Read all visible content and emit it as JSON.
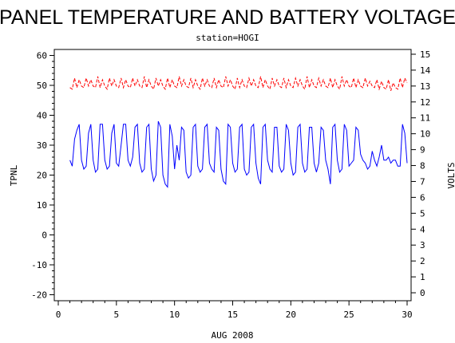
{
  "chart_data": {
    "type": "line",
    "title": "PANEL TEMPERATURE AND BATTERY VOLTAGE",
    "subtitle": "station=HOGI",
    "xlabel": "AUG 2008",
    "ylabel_left": "TPNL",
    "ylabel_right": "VOLTS",
    "xlim": [
      0,
      30
    ],
    "ylim_left": [
      -22,
      62
    ],
    "ylim_right": [
      -0.5,
      15.3
    ],
    "x_ticks": [
      0,
      5,
      10,
      15,
      20,
      25,
      30
    ],
    "x_minor_step": 1,
    "y_left_ticks": [
      -20,
      -10,
      0,
      10,
      20,
      30,
      40,
      50,
      60
    ],
    "y_left_minor_step": 2,
    "y_right_ticks": [
      0,
      1,
      2,
      3,
      4,
      5,
      6,
      7,
      8,
      9,
      10,
      11,
      12,
      13,
      14,
      15
    ],
    "grid": false,
    "legend": "none",
    "series": [
      {
        "axis": "left",
        "color": "#0000ff",
        "style": "solid",
        "points": [
          [
            1.0,
            25
          ],
          [
            1.2,
            23
          ],
          [
            1.4,
            32
          ],
          [
            1.6,
            35
          ],
          [
            1.8,
            37
          ],
          [
            2.0,
            25
          ],
          [
            2.2,
            22
          ],
          [
            2.4,
            23
          ],
          [
            2.6,
            34
          ],
          [
            2.8,
            37
          ],
          [
            3.0,
            25
          ],
          [
            3.2,
            21
          ],
          [
            3.4,
            22
          ],
          [
            3.6,
            37
          ],
          [
            3.8,
            37
          ],
          [
            4.0,
            25
          ],
          [
            4.2,
            22
          ],
          [
            4.4,
            23
          ],
          [
            4.6,
            34
          ],
          [
            4.8,
            37
          ],
          [
            5.0,
            24
          ],
          [
            5.2,
            23
          ],
          [
            5.4,
            30
          ],
          [
            5.6,
            37
          ],
          [
            5.8,
            37
          ],
          [
            6.0,
            25
          ],
          [
            6.2,
            23
          ],
          [
            6.4,
            26
          ],
          [
            6.6,
            36
          ],
          [
            6.8,
            37
          ],
          [
            7.0,
            24
          ],
          [
            7.2,
            21
          ],
          [
            7.4,
            22
          ],
          [
            7.6,
            36
          ],
          [
            7.8,
            37
          ],
          [
            8.0,
            22
          ],
          [
            8.2,
            18
          ],
          [
            8.4,
            20
          ],
          [
            8.6,
            38
          ],
          [
            8.8,
            36
          ],
          [
            9.0,
            20
          ],
          [
            9.2,
            17
          ],
          [
            9.4,
            16
          ],
          [
            9.6,
            37
          ],
          [
            9.8,
            33
          ],
          [
            10.0,
            22
          ],
          [
            10.2,
            30
          ],
          [
            10.4,
            25
          ],
          [
            10.6,
            36
          ],
          [
            10.8,
            35
          ],
          [
            11.0,
            21
          ],
          [
            11.2,
            19
          ],
          [
            11.4,
            20
          ],
          [
            11.6,
            36
          ],
          [
            11.8,
            37
          ],
          [
            12.0,
            23
          ],
          [
            12.2,
            21
          ],
          [
            12.4,
            22
          ],
          [
            12.6,
            36
          ],
          [
            12.8,
            37
          ],
          [
            13.0,
            24
          ],
          [
            13.2,
            22
          ],
          [
            13.4,
            21
          ],
          [
            13.6,
            36
          ],
          [
            13.8,
            35
          ],
          [
            14.0,
            22
          ],
          [
            14.2,
            18
          ],
          [
            14.4,
            17
          ],
          [
            14.6,
            37
          ],
          [
            14.8,
            36
          ],
          [
            15.0,
            24
          ],
          [
            15.2,
            21
          ],
          [
            15.4,
            22
          ],
          [
            15.6,
            36
          ],
          [
            15.8,
            37
          ],
          [
            16.0,
            22
          ],
          [
            16.2,
            20
          ],
          [
            16.4,
            21
          ],
          [
            16.6,
            36
          ],
          [
            16.8,
            37
          ],
          [
            17.0,
            24
          ],
          [
            17.2,
            19
          ],
          [
            17.4,
            17
          ],
          [
            17.6,
            36
          ],
          [
            17.8,
            37
          ],
          [
            18.0,
            25
          ],
          [
            18.2,
            22
          ],
          [
            18.4,
            21
          ],
          [
            18.6,
            36
          ],
          [
            18.8,
            36
          ],
          [
            19.0,
            23
          ],
          [
            19.2,
            21
          ],
          [
            19.4,
            22
          ],
          [
            19.6,
            37
          ],
          [
            19.8,
            35
          ],
          [
            20.0,
            24
          ],
          [
            20.2,
            20
          ],
          [
            20.4,
            21
          ],
          [
            20.6,
            36
          ],
          [
            20.8,
            37
          ],
          [
            21.0,
            24
          ],
          [
            21.2,
            21
          ],
          [
            21.4,
            22
          ],
          [
            21.6,
            36
          ],
          [
            21.8,
            36
          ],
          [
            22.0,
            24
          ],
          [
            22.2,
            21
          ],
          [
            22.4,
            24
          ],
          [
            22.6,
            36
          ],
          [
            22.8,
            35
          ],
          [
            23.0,
            25
          ],
          [
            23.2,
            22
          ],
          [
            23.4,
            17
          ],
          [
            23.6,
            36
          ],
          [
            23.8,
            37
          ],
          [
            24.0,
            25
          ],
          [
            24.2,
            21
          ],
          [
            24.4,
            22
          ],
          [
            24.6,
            37
          ],
          [
            24.8,
            35
          ],
          [
            25.0,
            23
          ],
          [
            25.2,
            24
          ],
          [
            25.4,
            25
          ],
          [
            25.6,
            36
          ],
          [
            25.8,
            35
          ],
          [
            26.0,
            27
          ],
          [
            26.2,
            25
          ],
          [
            26.4,
            24
          ],
          [
            26.6,
            22
          ],
          [
            26.8,
            23
          ],
          [
            27.0,
            28
          ],
          [
            27.2,
            25
          ],
          [
            27.4,
            23
          ],
          [
            27.6,
            26
          ],
          [
            27.8,
            30
          ],
          [
            28.0,
            25
          ],
          [
            28.2,
            25
          ],
          [
            28.4,
            26
          ],
          [
            28.6,
            24
          ],
          [
            28.8,
            25
          ],
          [
            29.0,
            25
          ],
          [
            29.2,
            23
          ],
          [
            29.4,
            23
          ],
          [
            29.6,
            37
          ],
          [
            29.8,
            34
          ],
          [
            30.0,
            24
          ]
        ]
      },
      {
        "axis": "right",
        "color": "#ff0000",
        "style": "dashed",
        "points": [
          [
            1.0,
            12.9
          ],
          [
            1.2,
            12.8
          ],
          [
            1.4,
            13.5
          ],
          [
            1.6,
            12.9
          ],
          [
            1.8,
            13.4
          ],
          [
            2.0,
            13.0
          ],
          [
            2.2,
            12.9
          ],
          [
            2.4,
            13.5
          ],
          [
            2.6,
            13.0
          ],
          [
            2.8,
            13.4
          ],
          [
            3.0,
            13.0
          ],
          [
            3.2,
            12.9
          ],
          [
            3.4,
            13.6
          ],
          [
            3.6,
            12.9
          ],
          [
            3.8,
            13.4
          ],
          [
            4.0,
            13.0
          ],
          [
            4.2,
            12.8
          ],
          [
            4.4,
            13.5
          ],
          [
            4.6,
            13.0
          ],
          [
            4.8,
            13.4
          ],
          [
            5.0,
            13.0
          ],
          [
            5.2,
            12.9
          ],
          [
            5.4,
            13.5
          ],
          [
            5.6,
            12.9
          ],
          [
            5.8,
            13.4
          ],
          [
            6.0,
            13.0
          ],
          [
            6.2,
            12.9
          ],
          [
            6.4,
            13.5
          ],
          [
            6.6,
            13.0
          ],
          [
            6.8,
            13.4
          ],
          [
            7.0,
            13.0
          ],
          [
            7.2,
            12.9
          ],
          [
            7.4,
            13.6
          ],
          [
            7.6,
            12.9
          ],
          [
            7.8,
            13.4
          ],
          [
            8.0,
            13.0
          ],
          [
            8.2,
            12.8
          ],
          [
            8.4,
            13.5
          ],
          [
            8.6,
            13.0
          ],
          [
            8.8,
            13.4
          ],
          [
            9.0,
            13.0
          ],
          [
            9.2,
            12.8
          ],
          [
            9.4,
            13.5
          ],
          [
            9.6,
            12.9
          ],
          [
            9.8,
            13.4
          ],
          [
            10.0,
            13.0
          ],
          [
            10.2,
            12.9
          ],
          [
            10.4,
            13.6
          ],
          [
            10.6,
            13.0
          ],
          [
            10.8,
            13.4
          ],
          [
            11.0,
            13.0
          ],
          [
            11.2,
            12.9
          ],
          [
            11.4,
            13.5
          ],
          [
            11.6,
            12.9
          ],
          [
            11.8,
            13.4
          ],
          [
            12.0,
            13.0
          ],
          [
            12.2,
            12.8
          ],
          [
            12.4,
            13.5
          ],
          [
            12.6,
            13.0
          ],
          [
            12.8,
            13.4
          ],
          [
            13.0,
            13.0
          ],
          [
            13.2,
            12.9
          ],
          [
            13.4,
            13.5
          ],
          [
            13.6,
            12.9
          ],
          [
            13.8,
            13.4
          ],
          [
            14.0,
            13.0
          ],
          [
            14.2,
            12.9
          ],
          [
            14.4,
            13.6
          ],
          [
            14.6,
            13.0
          ],
          [
            14.8,
            13.4
          ],
          [
            15.0,
            13.0
          ],
          [
            15.2,
            12.8
          ],
          [
            15.4,
            13.5
          ],
          [
            15.6,
            12.9
          ],
          [
            15.8,
            13.4
          ],
          [
            16.0,
            13.0
          ],
          [
            16.2,
            12.9
          ],
          [
            16.4,
            13.5
          ],
          [
            16.6,
            13.0
          ],
          [
            16.8,
            13.4
          ],
          [
            17.0,
            13.0
          ],
          [
            17.2,
            12.9
          ],
          [
            17.4,
            13.6
          ],
          [
            17.6,
            12.9
          ],
          [
            17.8,
            13.4
          ],
          [
            18.0,
            13.0
          ],
          [
            18.2,
            12.8
          ],
          [
            18.4,
            13.5
          ],
          [
            18.6,
            13.0
          ],
          [
            18.8,
            13.4
          ],
          [
            19.0,
            13.0
          ],
          [
            19.2,
            12.9
          ],
          [
            19.4,
            13.5
          ],
          [
            19.6,
            12.9
          ],
          [
            19.8,
            13.4
          ],
          [
            20.0,
            13.0
          ],
          [
            20.2,
            12.9
          ],
          [
            20.4,
            13.5
          ],
          [
            20.6,
            13.0
          ],
          [
            20.8,
            13.4
          ],
          [
            21.0,
            13.0
          ],
          [
            21.2,
            12.8
          ],
          [
            21.4,
            13.6
          ],
          [
            21.6,
            12.9
          ],
          [
            21.8,
            13.4
          ],
          [
            22.0,
            13.0
          ],
          [
            22.2,
            12.9
          ],
          [
            22.4,
            13.5
          ],
          [
            22.6,
            13.0
          ],
          [
            22.8,
            13.4
          ],
          [
            23.0,
            13.0
          ],
          [
            23.2,
            12.9
          ],
          [
            23.4,
            13.5
          ],
          [
            23.6,
            12.9
          ],
          [
            23.8,
            13.4
          ],
          [
            24.0,
            13.0
          ],
          [
            24.2,
            12.8
          ],
          [
            24.4,
            13.6
          ],
          [
            24.6,
            13.0
          ],
          [
            24.8,
            13.4
          ],
          [
            25.0,
            13.0
          ],
          [
            25.2,
            12.9
          ],
          [
            25.4,
            13.5
          ],
          [
            25.6,
            12.9
          ],
          [
            25.8,
            13.4
          ],
          [
            26.0,
            13.0
          ],
          [
            26.2,
            12.9
          ],
          [
            26.4,
            13.5
          ],
          [
            26.6,
            13.0
          ],
          [
            26.8,
            13.3
          ],
          [
            27.0,
            13.0
          ],
          [
            27.2,
            12.9
          ],
          [
            27.4,
            13.4
          ],
          [
            27.6,
            12.8
          ],
          [
            27.8,
            13.3
          ],
          [
            28.0,
            12.9
          ],
          [
            28.2,
            12.8
          ],
          [
            28.4,
            13.4
          ],
          [
            28.6,
            12.7
          ],
          [
            28.8,
            13.2
          ],
          [
            29.0,
            12.9
          ],
          [
            29.2,
            12.8
          ],
          [
            29.4,
            13.5
          ],
          [
            29.6,
            12.9
          ],
          [
            29.8,
            13.5
          ],
          [
            30.0,
            13.2
          ]
        ]
      }
    ]
  }
}
